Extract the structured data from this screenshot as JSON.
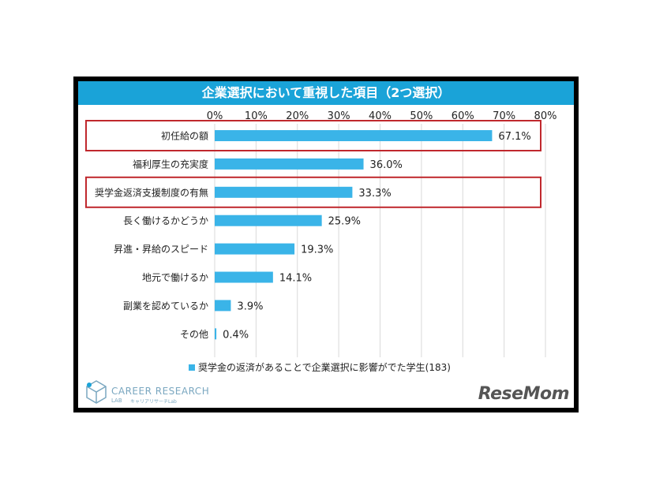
{
  "chart_data": {
    "type": "bar",
    "orientation": "horizontal",
    "title": "企業選択において重視した項目（2つ選択）",
    "categories": [
      "初任給の額",
      "福利厚生の充実度",
      "奨学金返済支援制度の有無",
      "長く働けるかどうか",
      "昇進・昇給のスピード",
      "地元で働けるか",
      "副業を認めているか",
      "その他"
    ],
    "series": [
      {
        "name": "奨学金の返済があることで企業選択に影響がでた学生(183)",
        "values": [
          67.1,
          36.0,
          33.3,
          25.9,
          19.3,
          14.1,
          3.9,
          0.4
        ],
        "value_labels": [
          "67.1%",
          "36.0%",
          "33.3%",
          "25.9%",
          "19.3%",
          "14.1%",
          "3.9%",
          "0.4%"
        ],
        "color": "#3ab4e8"
      }
    ],
    "xlim": [
      0,
      80
    ],
    "x_ticks": [
      "0%",
      "10%",
      "20%",
      "30%",
      "40%",
      "50%",
      "60%",
      "70%",
      "80%"
    ],
    "x_axis_position": "top",
    "grid": true,
    "legend_position": "bottom",
    "highlighted_categories": [
      "初任給の額",
      "奨学金返済支援制度の有無"
    ],
    "highlight_color": "#c0282d"
  },
  "branding": {
    "logo_text": "CAREER RESEARCH",
    "logo_text2": "LAB",
    "logo_sub": "キャリアリサーチLab",
    "watermark": "ReseMom"
  },
  "colors": {
    "title_bar": "#1aa3d8",
    "frame": "#000000",
    "gridline": "#d9d9d9"
  }
}
